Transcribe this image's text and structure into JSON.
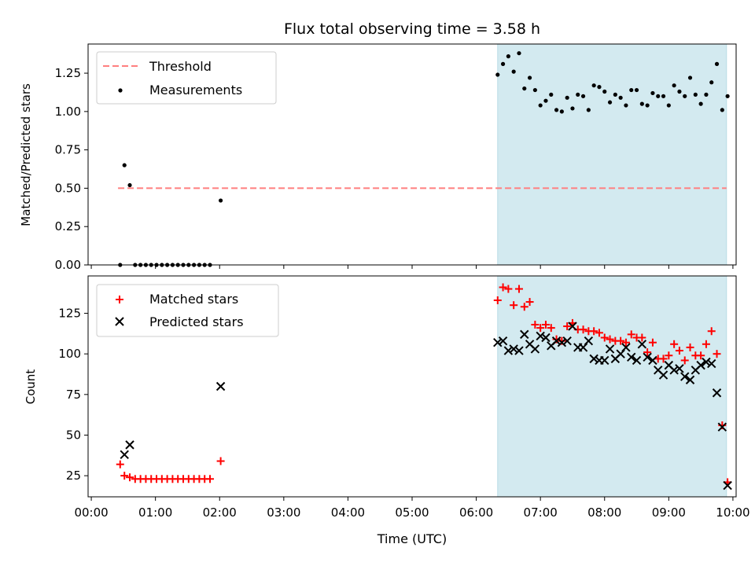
{
  "chart_data": [
    {
      "type": "scatter",
      "title": "Flux total observing time = 3.58 h",
      "ylabel": "Matched/Predicted stars",
      "xlabel": "",
      "xlim": [
        "00:00",
        "10:00"
      ],
      "ylim": [
        0,
        1.44
      ],
      "yticks": [
        "0.00",
        "0.25",
        "0.50",
        "0.75",
        "1.00",
        "1.25"
      ],
      "legend": "top-left",
      "shaded_region": {
        "x_start": "06:20",
        "x_end": "09:54",
        "color": "#d3eaf0"
      },
      "threshold": {
        "name": "Threshold",
        "value": 0.5,
        "x_start": "00:25",
        "x_end": "09:54",
        "color": "#ff7f7f"
      },
      "series": [
        {
          "name": "Measurements",
          "color": "#000000",
          "marker": "dot",
          "points": [
            [
              "00:27",
              0.0
            ],
            [
              "00:31",
              0.65
            ],
            [
              "00:36",
              0.52
            ],
            [
              "00:41",
              0.0
            ],
            [
              "00:46",
              0.0
            ],
            [
              "00:51",
              0.0
            ],
            [
              "00:56",
              0.0
            ],
            [
              "01:01",
              0.0
            ],
            [
              "01:06",
              0.0
            ],
            [
              "01:11",
              0.0
            ],
            [
              "01:16",
              0.0
            ],
            [
              "01:21",
              0.0
            ],
            [
              "01:26",
              0.0
            ],
            [
              "01:31",
              0.0
            ],
            [
              "01:36",
              0.0
            ],
            [
              "01:41",
              0.0
            ],
            [
              "01:46",
              0.0
            ],
            [
              "01:51",
              0.0
            ],
            [
              "02:01",
              0.42
            ],
            [
              "06:20",
              1.24
            ],
            [
              "06:25",
              1.31
            ],
            [
              "06:30",
              1.36
            ],
            [
              "06:35",
              1.26
            ],
            [
              "06:40",
              1.38
            ],
            [
              "06:45",
              1.15
            ],
            [
              "06:50",
              1.22
            ],
            [
              "06:55",
              1.14
            ],
            [
              "07:00",
              1.04
            ],
            [
              "07:05",
              1.07
            ],
            [
              "07:10",
              1.11
            ],
            [
              "07:15",
              1.01
            ],
            [
              "07:20",
              1.0
            ],
            [
              "07:25",
              1.09
            ],
            [
              "07:30",
              1.02
            ],
            [
              "07:35",
              1.11
            ],
            [
              "07:40",
              1.1
            ],
            [
              "07:45",
              1.01
            ],
            [
              "07:50",
              1.17
            ],
            [
              "07:55",
              1.16
            ],
            [
              "08:00",
              1.13
            ],
            [
              "08:05",
              1.06
            ],
            [
              "08:10",
              1.11
            ],
            [
              "08:15",
              1.09
            ],
            [
              "08:20",
              1.04
            ],
            [
              "08:25",
              1.14
            ],
            [
              "08:30",
              1.14
            ],
            [
              "08:35",
              1.05
            ],
            [
              "08:40",
              1.04
            ],
            [
              "08:45",
              1.12
            ],
            [
              "08:50",
              1.1
            ],
            [
              "08:55",
              1.1
            ],
            [
              "09:00",
              1.04
            ],
            [
              "09:05",
              1.17
            ],
            [
              "09:10",
              1.13
            ],
            [
              "09:15",
              1.1
            ],
            [
              "09:20",
              1.22
            ],
            [
              "09:25",
              1.11
            ],
            [
              "09:30",
              1.05
            ],
            [
              "09:35",
              1.11
            ],
            [
              "09:40",
              1.19
            ],
            [
              "09:45",
              1.31
            ],
            [
              "09:50",
              1.01
            ],
            [
              "09:55",
              1.1
            ]
          ]
        }
      ]
    },
    {
      "type": "scatter",
      "title": "",
      "ylabel": "Count",
      "xlabel": "Time (UTC)",
      "xlim": [
        "00:00",
        "10:00"
      ],
      "ylim": [
        12,
        148
      ],
      "xticks": [
        "00:00",
        "01:00",
        "02:00",
        "03:00",
        "04:00",
        "05:00",
        "06:00",
        "07:00",
        "08:00",
        "09:00",
        "10:00"
      ],
      "yticks": [
        "25",
        "50",
        "75",
        "100",
        "125"
      ],
      "legend": "top-left",
      "shaded_region": {
        "x_start": "06:20",
        "x_end": "09:54",
        "color": "#d3eaf0"
      },
      "series": [
        {
          "name": "Matched stars",
          "color": "#ff0000",
          "marker": "plus",
          "points": [
            [
              "00:27",
              32
            ],
            [
              "00:31",
              25
            ],
            [
              "00:36",
              24
            ],
            [
              "00:41",
              23
            ],
            [
              "00:46",
              23
            ],
            [
              "00:51",
              23
            ],
            [
              "00:56",
              23
            ],
            [
              "01:01",
              23
            ],
            [
              "01:06",
              23
            ],
            [
              "01:11",
              23
            ],
            [
              "01:16",
              23
            ],
            [
              "01:21",
              23
            ],
            [
              "01:26",
              23
            ],
            [
              "01:31",
              23
            ],
            [
              "01:36",
              23
            ],
            [
              "01:41",
              23
            ],
            [
              "01:46",
              23
            ],
            [
              "01:51",
              23
            ],
            [
              "02:01",
              34
            ],
            [
              "06:20",
              133
            ],
            [
              "06:25",
              141
            ],
            [
              "06:30",
              140
            ],
            [
              "06:35",
              130
            ],
            [
              "06:40",
              140
            ],
            [
              "06:45",
              129
            ],
            [
              "06:50",
              132
            ],
            [
              "06:55",
              118
            ],
            [
              "07:00",
              116
            ],
            [
              "07:05",
              118
            ],
            [
              "07:10",
              116
            ],
            [
              "07:15",
              109
            ],
            [
              "07:20",
              108
            ],
            [
              "07:25",
              117
            ],
            [
              "07:30",
              119
            ],
            [
              "07:35",
              115
            ],
            [
              "07:40",
              115
            ],
            [
              "07:45",
              114
            ],
            [
              "07:50",
              114
            ],
            [
              "07:55",
              113
            ],
            [
              "08:00",
              110
            ],
            [
              "08:05",
              109
            ],
            [
              "08:10",
              108
            ],
            [
              "08:15",
              108
            ],
            [
              "08:20",
              107
            ],
            [
              "08:25",
              112
            ],
            [
              "08:30",
              110
            ],
            [
              "08:35",
              110
            ],
            [
              "08:40",
              101
            ],
            [
              "08:45",
              107
            ],
            [
              "08:50",
              97
            ],
            [
              "08:55",
              97
            ],
            [
              "09:00",
              99
            ],
            [
              "09:05",
              106
            ],
            [
              "09:10",
              102
            ],
            [
              "09:15",
              96
            ],
            [
              "09:20",
              104
            ],
            [
              "09:25",
              99
            ],
            [
              "09:30",
              99
            ],
            [
              "09:35",
              106
            ],
            [
              "09:40",
              114
            ],
            [
              "09:45",
              100
            ],
            [
              "09:50",
              56
            ],
            [
              "09:55",
              21
            ]
          ]
        },
        {
          "name": "Predicted stars",
          "color": "#000000",
          "marker": "x",
          "points": [
            [
              "00:31",
              38
            ],
            [
              "00:36",
              44
            ],
            [
              "02:01",
              80
            ],
            [
              "06:20",
              107
            ],
            [
              "06:25",
              108
            ],
            [
              "06:30",
              102
            ],
            [
              "06:35",
              103
            ],
            [
              "06:40",
              102
            ],
            [
              "06:45",
              112
            ],
            [
              "06:50",
              106
            ],
            [
              "06:55",
              103
            ],
            [
              "07:00",
              111
            ],
            [
              "07:05",
              110
            ],
            [
              "07:10",
              105
            ],
            [
              "07:15",
              108
            ],
            [
              "07:20",
              107
            ],
            [
              "07:25",
              108
            ],
            [
              "07:30",
              117
            ],
            [
              "07:35",
              104
            ],
            [
              "07:40",
              104
            ],
            [
              "07:45",
              108
            ],
            [
              "07:50",
              97
            ],
            [
              "07:55",
              96
            ],
            [
              "08:00",
              96
            ],
            [
              "08:05",
              103
            ],
            [
              "08:10",
              97
            ],
            [
              "08:15",
              100
            ],
            [
              "08:20",
              104
            ],
            [
              "08:25",
              98
            ],
            [
              "08:30",
              96
            ],
            [
              "08:35",
              106
            ],
            [
              "08:40",
              98
            ],
            [
              "08:45",
              96
            ],
            [
              "08:50",
              90
            ],
            [
              "08:55",
              87
            ],
            [
              "09:00",
              93
            ],
            [
              "09:05",
              90
            ],
            [
              "09:10",
              91
            ],
            [
              "09:15",
              86
            ],
            [
              "09:20",
              84
            ],
            [
              "09:25",
              90
            ],
            [
              "09:30",
              93
            ],
            [
              "09:35",
              95
            ],
            [
              "09:40",
              94
            ],
            [
              "09:45",
              76
            ],
            [
              "09:50",
              55
            ],
            [
              "09:55",
              19
            ]
          ]
        }
      ]
    }
  ]
}
